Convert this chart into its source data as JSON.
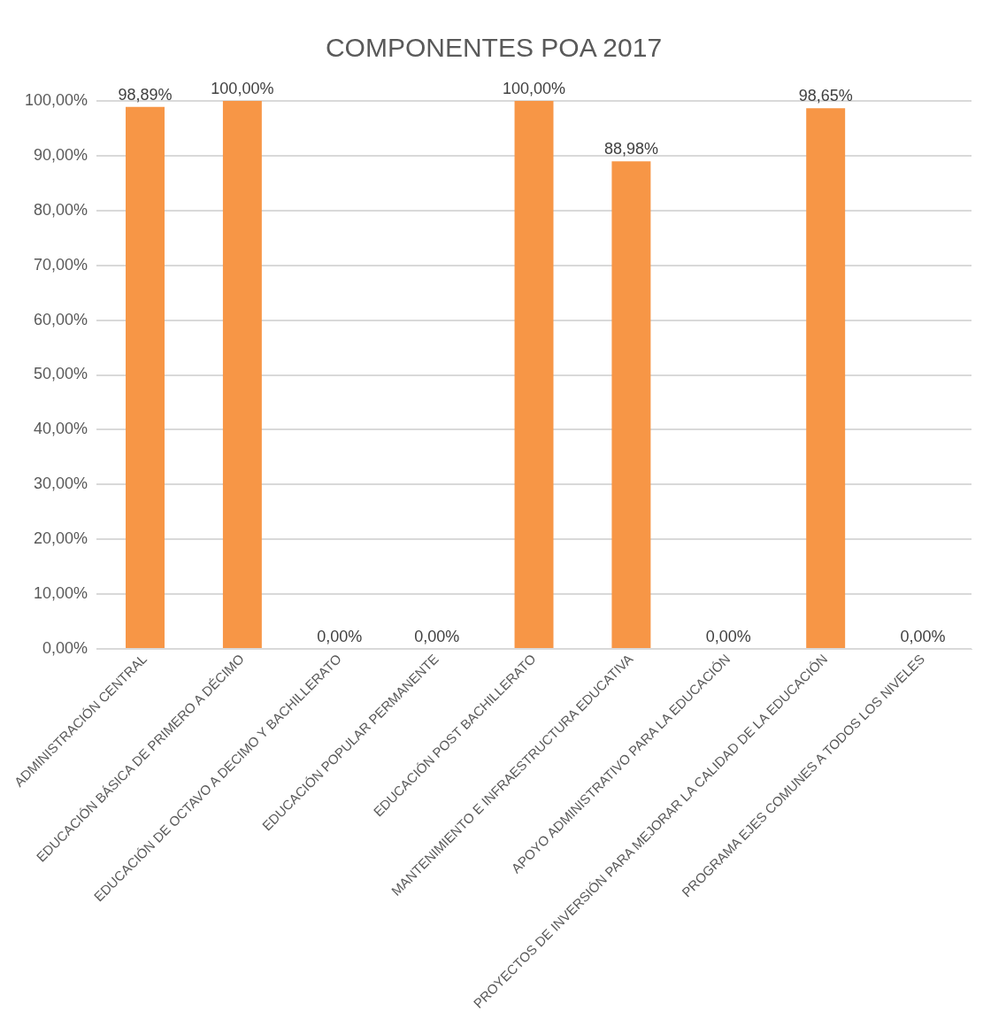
{
  "chart_data": {
    "type": "bar",
    "title": "COMPONENTES POA 2017",
    "categories": [
      "ADMINISTRACIÓN CENTRAL",
      "EDUCACIÓN BÁSICA DE PRIMERO A DÉCIMO",
      "EDUCACIÓN DE OCTAVO A DECIMO Y BACHILLERATO",
      "EDUCACIÓN POPULAR PERMANENTE",
      "EDUCACIÓN POST BACHILLERATO",
      "MANTENIMIENTO E INFRAESTRUCTURA EDUCATIVA",
      "APOYO ADMINISTRATIVO PARA LA EDUCACIÓN",
      "PROYECTOS DE INVERSIÓN PARA MEJORAR LA CALIDAD DE LA EDUCACIÓN",
      "PROGRAMA EJES COMUNES A TODOS LOS NIVELES"
    ],
    "values": [
      98.89,
      100,
      0,
      0,
      100,
      88.98,
      0,
      98.65,
      0
    ],
    "value_labels": [
      "98,89%",
      "100,00%",
      "0,00%",
      "0,00%",
      "100,00%",
      "88,98%",
      "0,00%",
      "98,65%",
      "0,00%"
    ],
    "color": "#f79646",
    "ylim": [
      0,
      100
    ],
    "yticks": [
      {
        "value": 0,
        "label": "0,00%"
      },
      {
        "value": 10,
        "label": "10,00%"
      },
      {
        "value": 20,
        "label": "20,00%"
      },
      {
        "value": 30,
        "label": "30,00%"
      },
      {
        "value": 40,
        "label": "40,00%"
      },
      {
        "value": 50,
        "label": "50,00%"
      },
      {
        "value": 60,
        "label": "60,00%"
      },
      {
        "value": 70,
        "label": "70,00%"
      },
      {
        "value": 80,
        "label": "80,00%"
      },
      {
        "value": 90,
        "label": "90,00%"
      },
      {
        "value": 100,
        "label": "100,00%"
      }
    ],
    "grid": "y",
    "legend": false
  }
}
